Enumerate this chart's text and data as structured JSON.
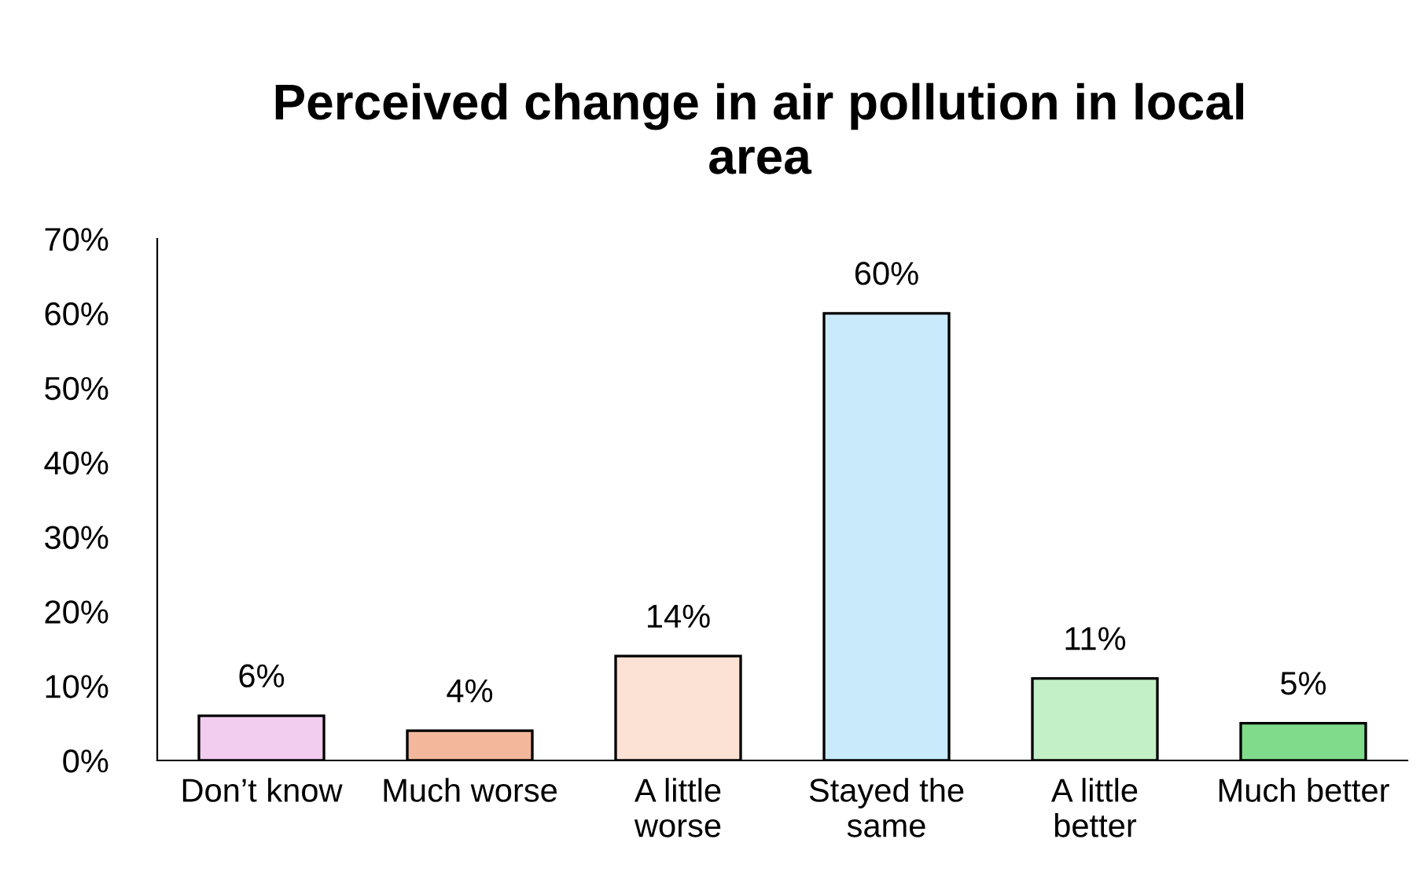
{
  "chart_data": {
    "type": "bar",
    "title": "Perceived change in air pollution in local\narea",
    "categories": [
      "Don’t know",
      "Much worse",
      "A little\nworse",
      "Stayed the\nsame",
      "A little\nbetter",
      "Much better"
    ],
    "values": [
      6,
      4,
      14,
      60,
      11,
      5
    ],
    "value_labels": [
      "6%",
      "4%",
      "14%",
      "60%",
      "11%",
      "5%"
    ],
    "colors": [
      "#f2cdf0",
      "#f3b89b",
      "#fbe2d4",
      "#c8eafb",
      "#c3f0c5",
      "#80dc8b"
    ],
    "ylim": [
      0,
      70
    ],
    "yticks": [
      {
        "value": 0,
        "label": "0%"
      },
      {
        "value": 10,
        "label": "10%"
      },
      {
        "value": 20,
        "label": "20%"
      },
      {
        "value": 30,
        "label": "30%"
      },
      {
        "value": 40,
        "label": "40%"
      },
      {
        "value": 50,
        "label": "50%"
      },
      {
        "value": 60,
        "label": "60%"
      },
      {
        "value": 70,
        "label": "70%"
      }
    ],
    "grid": false,
    "legend": false
  }
}
